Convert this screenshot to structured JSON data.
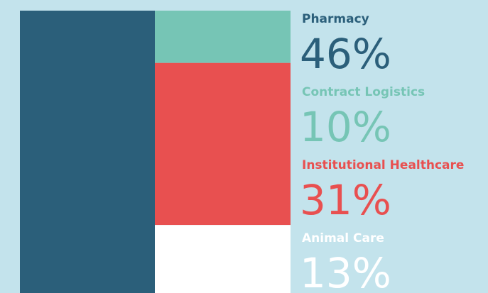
{
  "chart_data": {
    "type": "treemap",
    "categories": [
      "Pharmacy",
      "Contract Logistics",
      "Institutional Healthcare",
      "Animal Care"
    ],
    "values": [
      46,
      10,
      31,
      13
    ],
    "value_labels": [
      "46%",
      "10%",
      "31%",
      "13%"
    ],
    "colors": [
      "#2b5f7a",
      "#76c5b5",
      "#e85050",
      "#ffffff"
    ]
  }
}
